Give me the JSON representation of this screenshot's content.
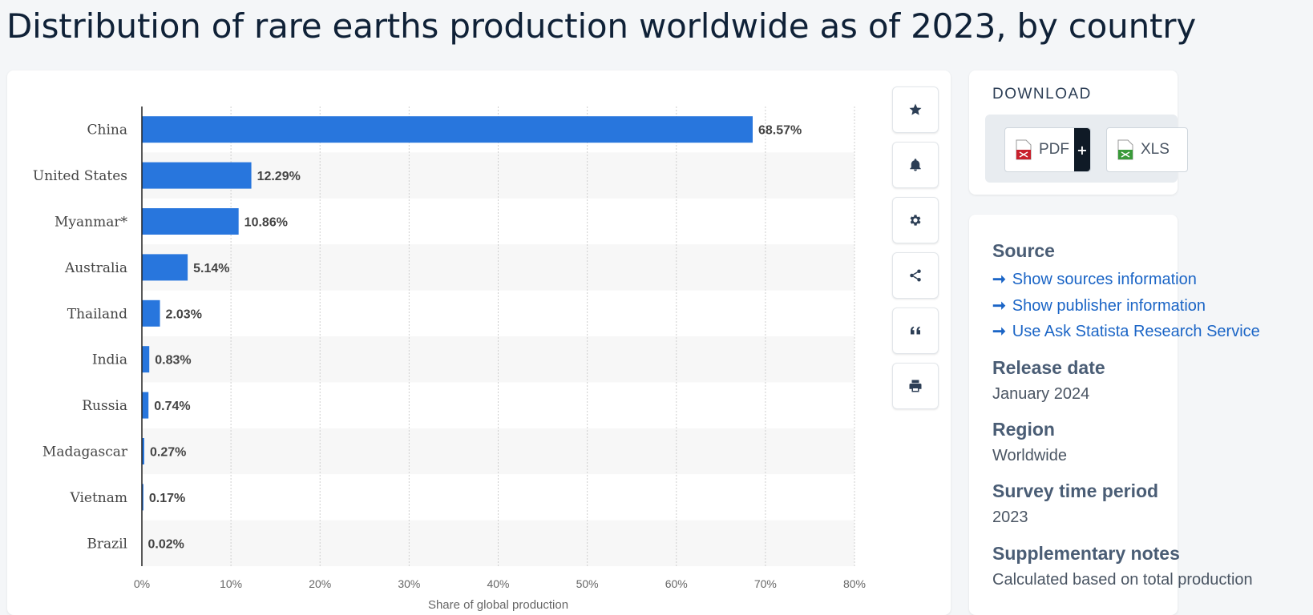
{
  "page": {
    "title": "Distribution of rare earths production worldwide as of 2023, by country"
  },
  "chart_data": {
    "type": "bar",
    "orientation": "horizontal",
    "title": "Distribution of rare earths production worldwide as of 2023, by country",
    "categories": [
      "China",
      "United States",
      "Myanmar*",
      "Australia",
      "Thailand",
      "India",
      "Russia",
      "Madagascar",
      "Vietnam",
      "Brazil"
    ],
    "values": [
      68.57,
      12.29,
      10.86,
      5.14,
      2.03,
      0.83,
      0.74,
      0.27,
      0.17,
      0.02
    ],
    "value_labels": [
      "68.57%",
      "12.29%",
      "10.86%",
      "5.14%",
      "2.03%",
      "0.83%",
      "0.74%",
      "0.27%",
      "0.17%",
      "0.02%"
    ],
    "xlim": [
      0,
      80
    ],
    "xticks": [
      0,
      10,
      20,
      30,
      40,
      50,
      60,
      70,
      80
    ],
    "xtick_labels": [
      "0%",
      "10%",
      "20%",
      "30%",
      "40%",
      "50%",
      "60%",
      "70%",
      "80%"
    ],
    "xlabel": "Share of global production",
    "ylabel": "",
    "grid": true,
    "bar_color": "#2876dd"
  },
  "toolbar": {
    "buttons": [
      {
        "name": "favorite-button",
        "icon": "star-icon"
      },
      {
        "name": "notification-button",
        "icon": "bell-icon"
      },
      {
        "name": "settings-button",
        "icon": "gear-icon"
      },
      {
        "name": "share-button",
        "icon": "share-icon"
      },
      {
        "name": "cite-button",
        "icon": "quote-icon"
      },
      {
        "name": "print-button",
        "icon": "print-icon"
      }
    ]
  },
  "download": {
    "heading": "DOWNLOAD",
    "pdf_label": "PDF",
    "pdf_badge": "+",
    "xls_label": "XLS"
  },
  "info": {
    "source_heading": "Source",
    "links": [
      "Show sources information",
      "Show publisher information",
      "Use Ask Statista Research Service"
    ],
    "release_heading": "Release date",
    "release_value": "January 2024",
    "region_heading": "Region",
    "region_value": "Worldwide",
    "survey_heading": "Survey time period",
    "survey_value": "2023",
    "supp_heading": "Supplementary notes",
    "supp_value": "Calculated based on total production"
  },
  "colors": {
    "accent": "#2876dd",
    "link": "#1b65c6",
    "title": "#0f2137"
  }
}
